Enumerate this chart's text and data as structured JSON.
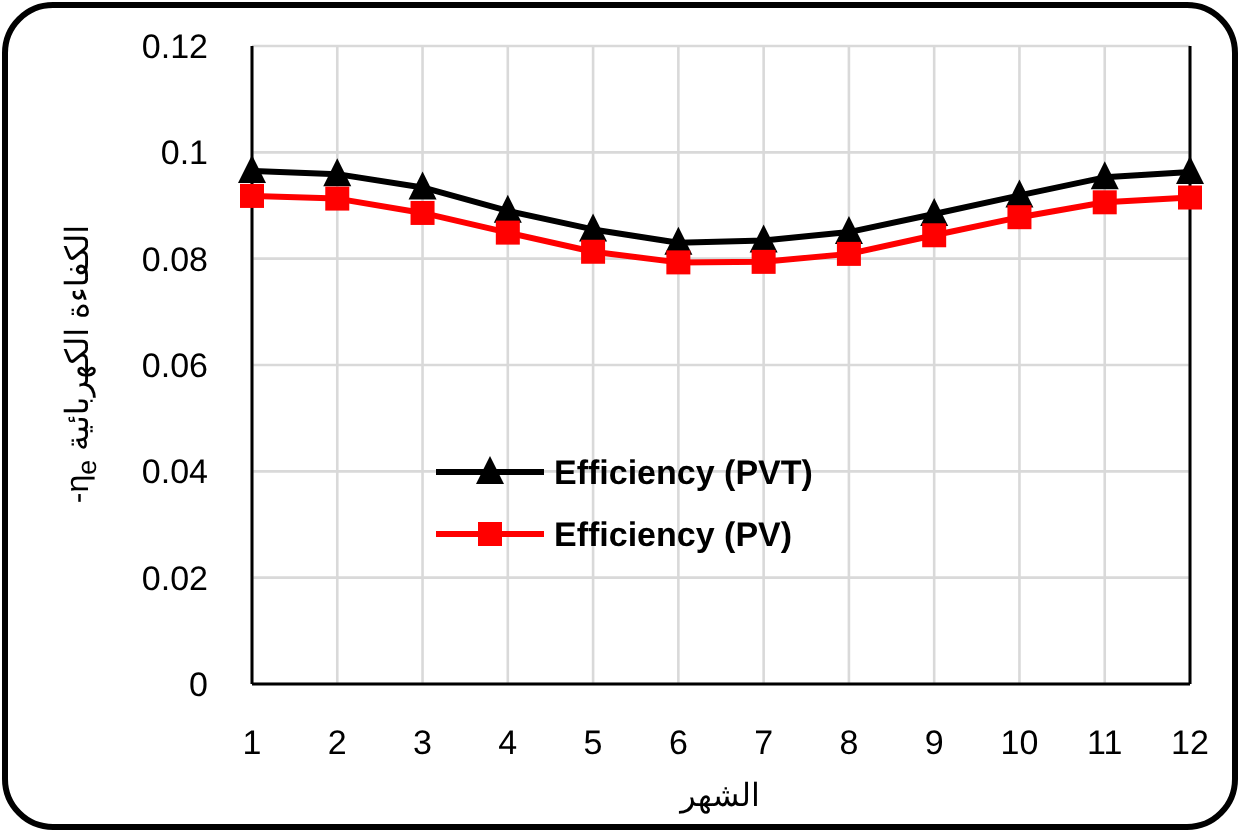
{
  "chart_data": {
    "type": "line",
    "xlabel": "الشهر",
    "ylabel": "الكفاءة الكهربائية η$_{e}$-",
    "x": [
      1,
      2,
      3,
      4,
      5,
      6,
      7,
      8,
      9,
      10,
      11,
      12
    ],
    "series": [
      {
        "name": "Efficiency (PVT)",
        "color": "#000000",
        "marker": "triangle",
        "values": [
          0.0965,
          0.0959,
          0.0934,
          0.089,
          0.0855,
          0.083,
          0.0834,
          0.085,
          0.0884,
          0.0919,
          0.0953,
          0.0963
        ]
      },
      {
        "name": "Efficiency (PV)",
        "color": "#ff0000",
        "marker": "square",
        "values": [
          0.0918,
          0.0913,
          0.0886,
          0.0849,
          0.0813,
          0.0793,
          0.0794,
          0.0809,
          0.0844,
          0.0878,
          0.0906,
          0.0915
        ]
      }
    ],
    "xlim": [
      1,
      12
    ],
    "xticks": [
      1,
      2,
      3,
      4,
      5,
      6,
      7,
      8,
      9,
      10,
      11,
      12
    ],
    "ylim": [
      0,
      0.12
    ],
    "yticks": [
      0,
      0.02,
      0.04,
      0.06,
      0.08,
      0.1,
      0.12
    ],
    "grid": true,
    "legend": "bottom left",
    "line_style": "solid"
  }
}
